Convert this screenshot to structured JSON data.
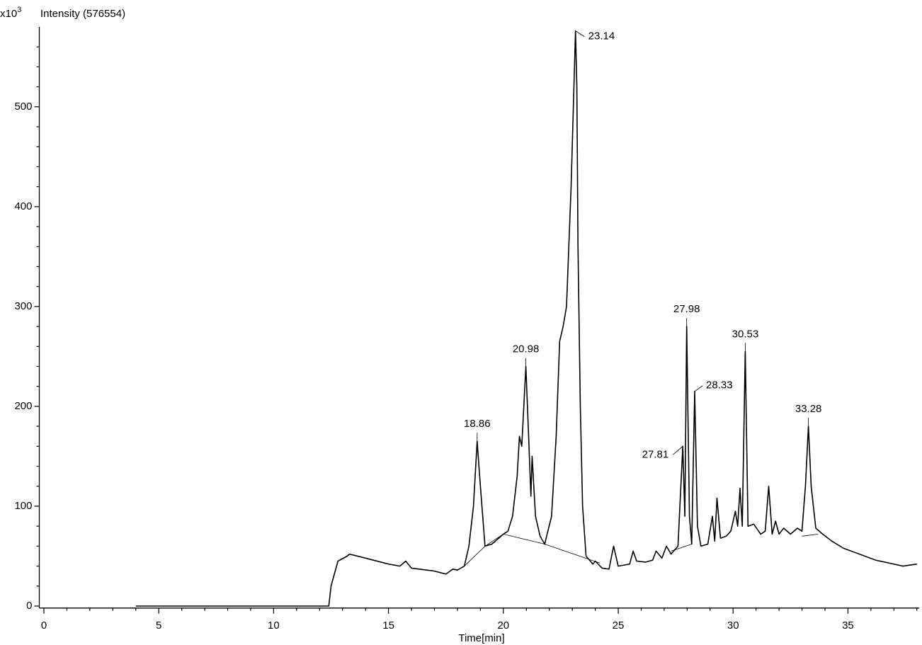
{
  "chart_data": {
    "type": "line",
    "y_unit": {
      "base": "x10",
      "exponent": "3"
    },
    "y_label": "Intensity (576554)",
    "x_label": "Time[min]",
    "xlim": [
      -0.2,
      38.1
    ],
    "ylim": [
      -2,
      580
    ],
    "xticks": [
      0,
      5,
      10,
      15,
      20,
      25,
      30,
      35
    ],
    "xminorticks": [
      1,
      2,
      3,
      4,
      6,
      7,
      8,
      9,
      11,
      12,
      13,
      14,
      16,
      17,
      18,
      19,
      21,
      22,
      23,
      24,
      26,
      27,
      28,
      29,
      31,
      32,
      33,
      34,
      36,
      37,
      38
    ],
    "yticks": [
      0,
      100,
      200,
      300,
      400,
      500
    ],
    "yminorticks": [
      20,
      40,
      60,
      80,
      120,
      140,
      160,
      180,
      220,
      240,
      260,
      280,
      320,
      340,
      360,
      380,
      420,
      440,
      460,
      480,
      520,
      540,
      560
    ],
    "series": [
      {
        "color": "#000000",
        "x": [
          4.0,
          12.4,
          12.5,
          12.8,
          13.2,
          13.3,
          14.0,
          15.0,
          15.5,
          15.75,
          16.0,
          17.0,
          17.5,
          17.8,
          18.0,
          18.3,
          18.5,
          18.7,
          18.86,
          19.0,
          19.2,
          19.5,
          19.8,
          20.0,
          20.2,
          20.4,
          20.6,
          20.7,
          20.8,
          20.98,
          21.1,
          21.2,
          21.25,
          21.4,
          21.6,
          21.8,
          22.1,
          22.3,
          22.45,
          22.6,
          22.75,
          22.95,
          23.14,
          23.2,
          23.25,
          23.35,
          23.45,
          23.6,
          23.9,
          24.0,
          24.3,
          24.6,
          24.8,
          25.0,
          25.5,
          25.65,
          25.8,
          26.2,
          26.5,
          26.65,
          26.9,
          27.1,
          27.3,
          27.6,
          27.81,
          27.9,
          27.98,
          28.1,
          28.2,
          28.33,
          28.45,
          28.6,
          28.9,
          29.1,
          29.2,
          29.3,
          29.45,
          29.7,
          29.9,
          30.1,
          30.2,
          30.3,
          30.4,
          30.53,
          30.65,
          30.9,
          31.2,
          31.4,
          31.55,
          31.7,
          31.85,
          32.0,
          32.2,
          32.5,
          32.8,
          33.0,
          33.15,
          33.28,
          33.4,
          33.6,
          33.9,
          34.3,
          34.8,
          35.5,
          36.2,
          36.8,
          37.4,
          38.0
        ],
        "values": [
          0,
          0,
          20,
          45,
          50,
          52,
          48,
          42,
          40,
          45,
          38,
          35,
          32,
          37,
          36,
          40,
          60,
          100,
          165,
          120,
          60,
          62,
          68,
          72,
          75,
          90,
          130,
          170,
          160,
          240,
          170,
          110,
          150,
          90,
          70,
          62,
          90,
          170,
          265,
          280,
          300,
          420,
          576,
          520,
          360,
          200,
          100,
          50,
          42,
          45,
          38,
          37,
          60,
          40,
          42,
          55,
          45,
          44,
          46,
          55,
          48,
          60,
          52,
          60,
          160,
          90,
          280,
          90,
          62,
          215,
          80,
          60,
          62,
          90,
          65,
          108,
          68,
          70,
          75,
          95,
          80,
          118,
          80,
          255,
          80,
          82,
          72,
          75,
          120,
          72,
          85,
          72,
          78,
          72,
          78,
          75,
          120,
          180,
          120,
          78,
          72,
          65,
          58,
          52,
          46,
          43,
          40,
          42
        ]
      },
      {
        "color": "#000000",
        "x": [
          18.3,
          19.2,
          20.0,
          21.8,
          24.2,
          null,
          27.3,
          28.2,
          null,
          33.0,
          33.7
        ],
        "values": [
          40,
          60,
          72,
          62,
          43,
          null,
          55,
          62,
          null,
          70,
          72
        ]
      }
    ],
    "annotations": [
      {
        "text": "18.86",
        "x": 18.86,
        "y": 165
      },
      {
        "text": "20.98",
        "x": 20.98,
        "y": 240
      },
      {
        "text": "23.14",
        "x": 23.14,
        "y": 576
      },
      {
        "text": "27.81",
        "x": 27.81,
        "y": 160
      },
      {
        "text": "27.98",
        "x": 27.98,
        "y": 280
      },
      {
        "text": "28.33",
        "x": 28.33,
        "y": 215
      },
      {
        "text": "30.53",
        "x": 30.53,
        "y": 255
      },
      {
        "text": "33.28",
        "x": 33.28,
        "y": 180
      }
    ]
  }
}
